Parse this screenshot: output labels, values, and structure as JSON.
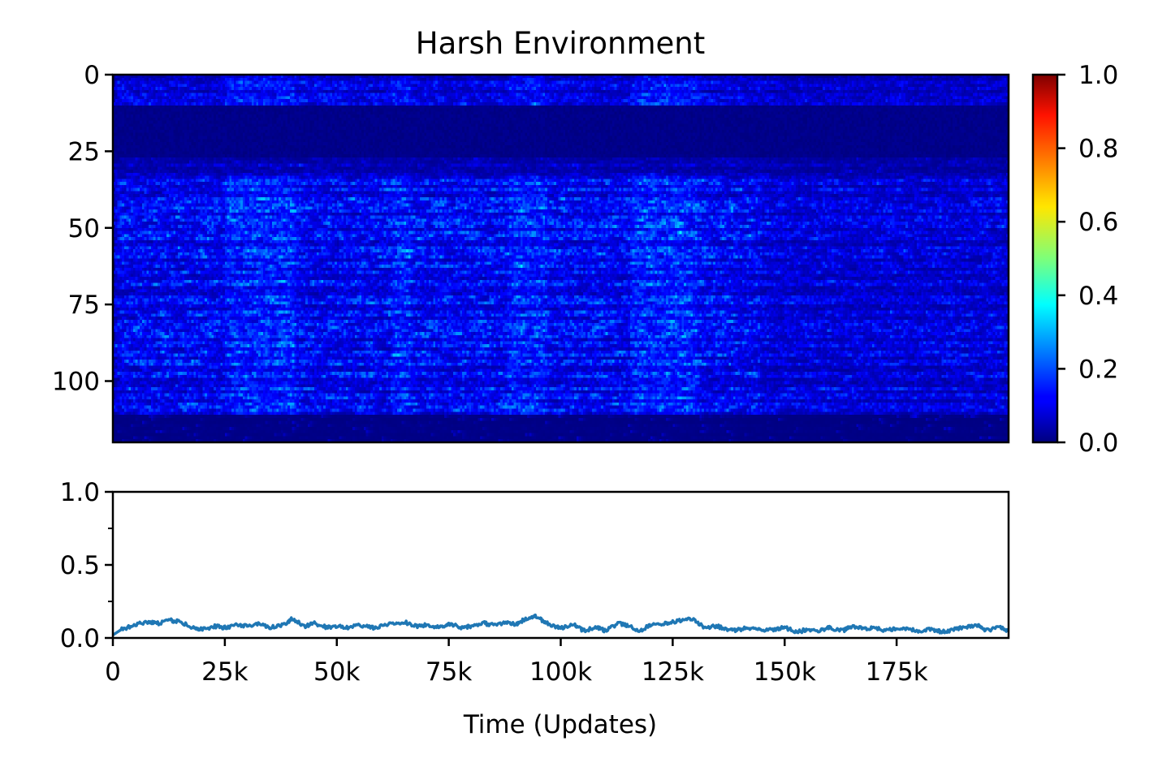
{
  "chart_data": [
    {
      "type": "heatmap",
      "title": "Harsh Environment",
      "xlabel": "",
      "ylabel": "",
      "colormap": "jet",
      "x_range": [
        0,
        200000
      ],
      "y_range": [
        0,
        120
      ],
      "y_inverted": true,
      "yticks": [
        0,
        25,
        50,
        75,
        100
      ],
      "ytick_labels": [
        "0",
        "25",
        "50",
        "75",
        "100"
      ],
      "value_range": [
        0.0,
        1.0
      ],
      "colorbar_ticks": [
        0.0,
        0.2,
        0.4,
        0.6,
        0.8,
        1.0
      ],
      "colorbar_tick_labels": [
        "0.0",
        "0.2",
        "0.4",
        "0.6",
        "0.8",
        "1.0"
      ],
      "rows": 120,
      "cols": 400,
      "row_bands": [
        {
          "rows": [
            0,
            10
          ],
          "level": 0.12
        },
        {
          "rows": [
            10,
            27
          ],
          "level": 0.0
        },
        {
          "rows": [
            27,
            33
          ],
          "level": 0.08
        },
        {
          "rows": [
            33,
            111
          ],
          "level": 0.16
        },
        {
          "rows": [
            111,
            120
          ],
          "level": 0.01
        }
      ],
      "hot_periods_x": [
        [
          25000,
          40000
        ],
        [
          62000,
          66000
        ],
        [
          88000,
          96000
        ],
        [
          115000,
          130000
        ]
      ]
    },
    {
      "type": "line",
      "title": "",
      "xlabel": "Time (Updates)",
      "ylabel": "",
      "xlim": [
        0,
        200000
      ],
      "ylim": [
        0.0,
        1.0
      ],
      "xticks": [
        0,
        25000,
        50000,
        75000,
        100000,
        125000,
        150000,
        175000
      ],
      "xtick_labels": [
        "0",
        "25k",
        "50k",
        "75k",
        "100k",
        "125k",
        "150k",
        "175k"
      ],
      "yticks": [
        0.0,
        0.5,
        1.0
      ],
      "ytick_labels": [
        "0.0",
        "0.5",
        "1.0"
      ],
      "minor_yticks": [
        0.25,
        0.75
      ],
      "color": "#1f77b4",
      "series": [
        {
          "x": [
            0,
            2000,
            5000,
            8000,
            10000,
            13000,
            15000,
            18000,
            20000,
            23000,
            25000,
            28000,
            30000,
            33000,
            35000,
            38000,
            40000,
            43000,
            45000,
            48000,
            50000,
            53000,
            55000,
            58000,
            60000,
            63000,
            65000,
            68000,
            70000,
            73000,
            75000,
            78000,
            80000,
            83000,
            85000,
            88000,
            90000,
            92000,
            94000,
            96000,
            98000,
            100000,
            103000,
            105000,
            108000,
            110000,
            113000,
            115000,
            118000,
            120000,
            123000,
            125000,
            128000,
            130000,
            132000,
            135000,
            138000,
            140000,
            143000,
            145000,
            148000,
            150000,
            153000,
            155000,
            158000,
            160000,
            163000,
            165000,
            168000,
            170000,
            173000,
            175000,
            178000,
            180000,
            183000,
            185000,
            188000,
            190000,
            193000,
            195000,
            198000,
            200000
          ],
          "y": [
            0.02,
            0.06,
            0.09,
            0.11,
            0.1,
            0.12,
            0.11,
            0.07,
            0.06,
            0.08,
            0.07,
            0.09,
            0.08,
            0.1,
            0.07,
            0.09,
            0.13,
            0.08,
            0.1,
            0.07,
            0.08,
            0.07,
            0.09,
            0.07,
            0.08,
            0.1,
            0.11,
            0.08,
            0.09,
            0.07,
            0.1,
            0.07,
            0.08,
            0.1,
            0.09,
            0.11,
            0.09,
            0.13,
            0.15,
            0.12,
            0.08,
            0.07,
            0.09,
            0.05,
            0.07,
            0.05,
            0.1,
            0.08,
            0.05,
            0.09,
            0.1,
            0.11,
            0.13,
            0.12,
            0.07,
            0.08,
            0.05,
            0.06,
            0.07,
            0.05,
            0.06,
            0.07,
            0.04,
            0.06,
            0.05,
            0.07,
            0.05,
            0.08,
            0.06,
            0.07,
            0.05,
            0.07,
            0.06,
            0.05,
            0.06,
            0.04,
            0.06,
            0.07,
            0.09,
            0.05,
            0.07,
            0.05
          ]
        }
      ]
    }
  ]
}
